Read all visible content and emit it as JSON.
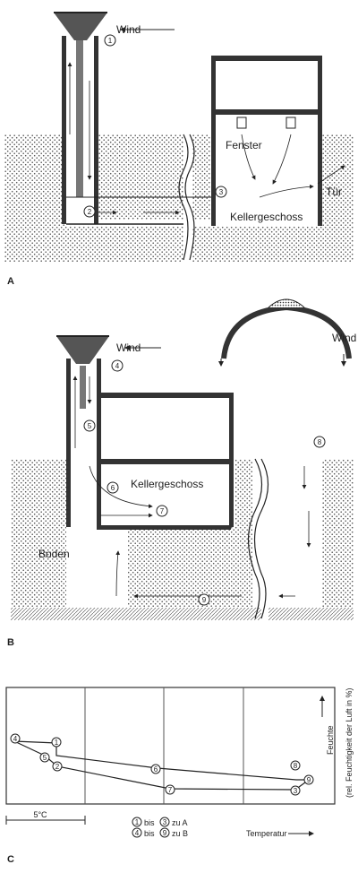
{
  "panel_a": {
    "letter": "A",
    "wind_label": "Wind",
    "window_label": "Fenster",
    "door_label": "Tür",
    "basement_label": "Kellergeschoss",
    "markers": [
      "1",
      "2",
      "3"
    ]
  },
  "panel_b": {
    "letter": "B",
    "wind_label": "Wind",
    "dome_wind_label": "Wind",
    "basement_label": "Kellergeschoss",
    "soil_label": "Boden",
    "markers": [
      "4",
      "5",
      "6",
      "7",
      "8",
      "9"
    ]
  },
  "panel_c": {
    "letter": "C",
    "y_axis_label": "Feuchte",
    "y_axis_side_label": "(rel. Feuchtigkeit der Luft in %)",
    "x_axis_label": "Temperatur",
    "scale_label": "5°C",
    "legend_line1": "bis",
    "legend_line1_suffix": "zu A",
    "legend_line2": "bis",
    "legend_line2_suffix": "zu B",
    "legend_markers": [
      "1",
      "3",
      "4",
      "9"
    ]
  }
}
